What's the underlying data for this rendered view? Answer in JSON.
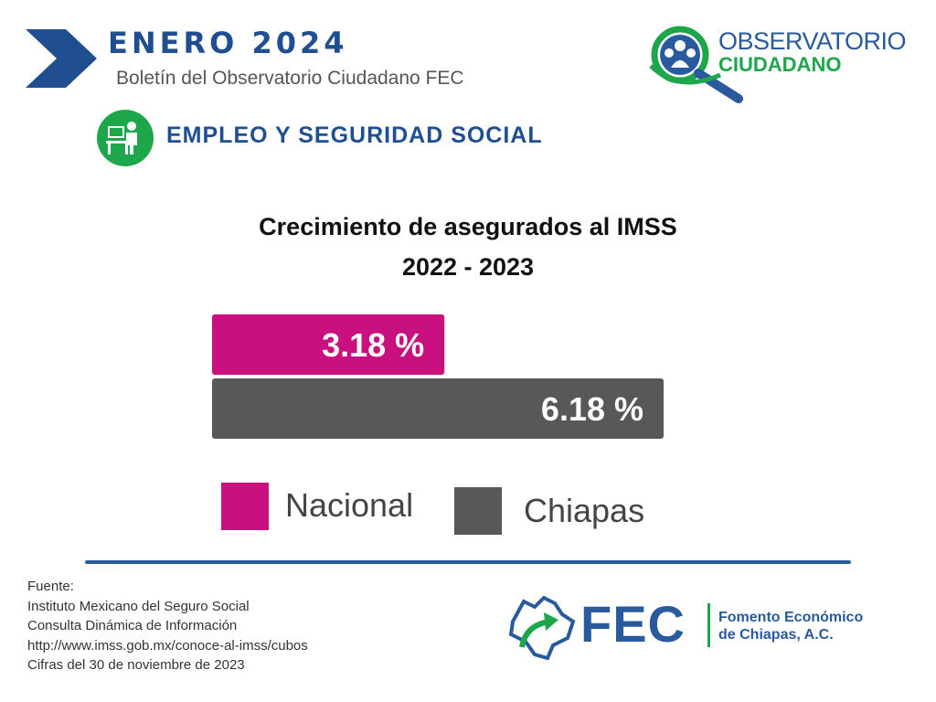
{
  "header": {
    "month": "ENERO  2024",
    "bulletin": "Boletín del Observatorio Ciudadano FEC",
    "section_title": "EMPLEO Y SEGURIDAD SOCIAL",
    "section_icon": "desk-worker-icon",
    "chevron_color": "#1f4e91"
  },
  "logo": {
    "line1": "OBSERVATORIO",
    "line2": "CIUDADANO",
    "icon": "magnifier-people-icon"
  },
  "chart_data": {
    "type": "bar",
    "orientation": "horizontal",
    "title": "Crecimiento de asegurados al IMSS",
    "subtitle": "2022 - 2023",
    "categories": [
      "Nacional",
      "Chiapas"
    ],
    "values": [
      3.18,
      6.18
    ],
    "value_labels": [
      "3.18 %",
      "6.18 %"
    ],
    "colors": [
      "#c8117f",
      "#58585a"
    ],
    "legend": [
      "Nacional",
      "Chiapas"
    ],
    "legend_position": "bottom",
    "grid": false,
    "xlim": [
      0,
      6.18
    ]
  },
  "source": {
    "lines": [
      "Fuente:",
      "Instituto Mexicano del Seguro Social",
      "Consulta Dinámica de Información",
      "http://www.imss.gob.mx/conoce-al-imss/cubos",
      "Cifras del 30 de noviembre de 2023"
    ]
  },
  "fec": {
    "acronym": "FEC",
    "name_line1": "Fomento Económico",
    "name_line2": "de Chiapas, A.C.",
    "icon": "chiapas-map-arrow-icon"
  }
}
